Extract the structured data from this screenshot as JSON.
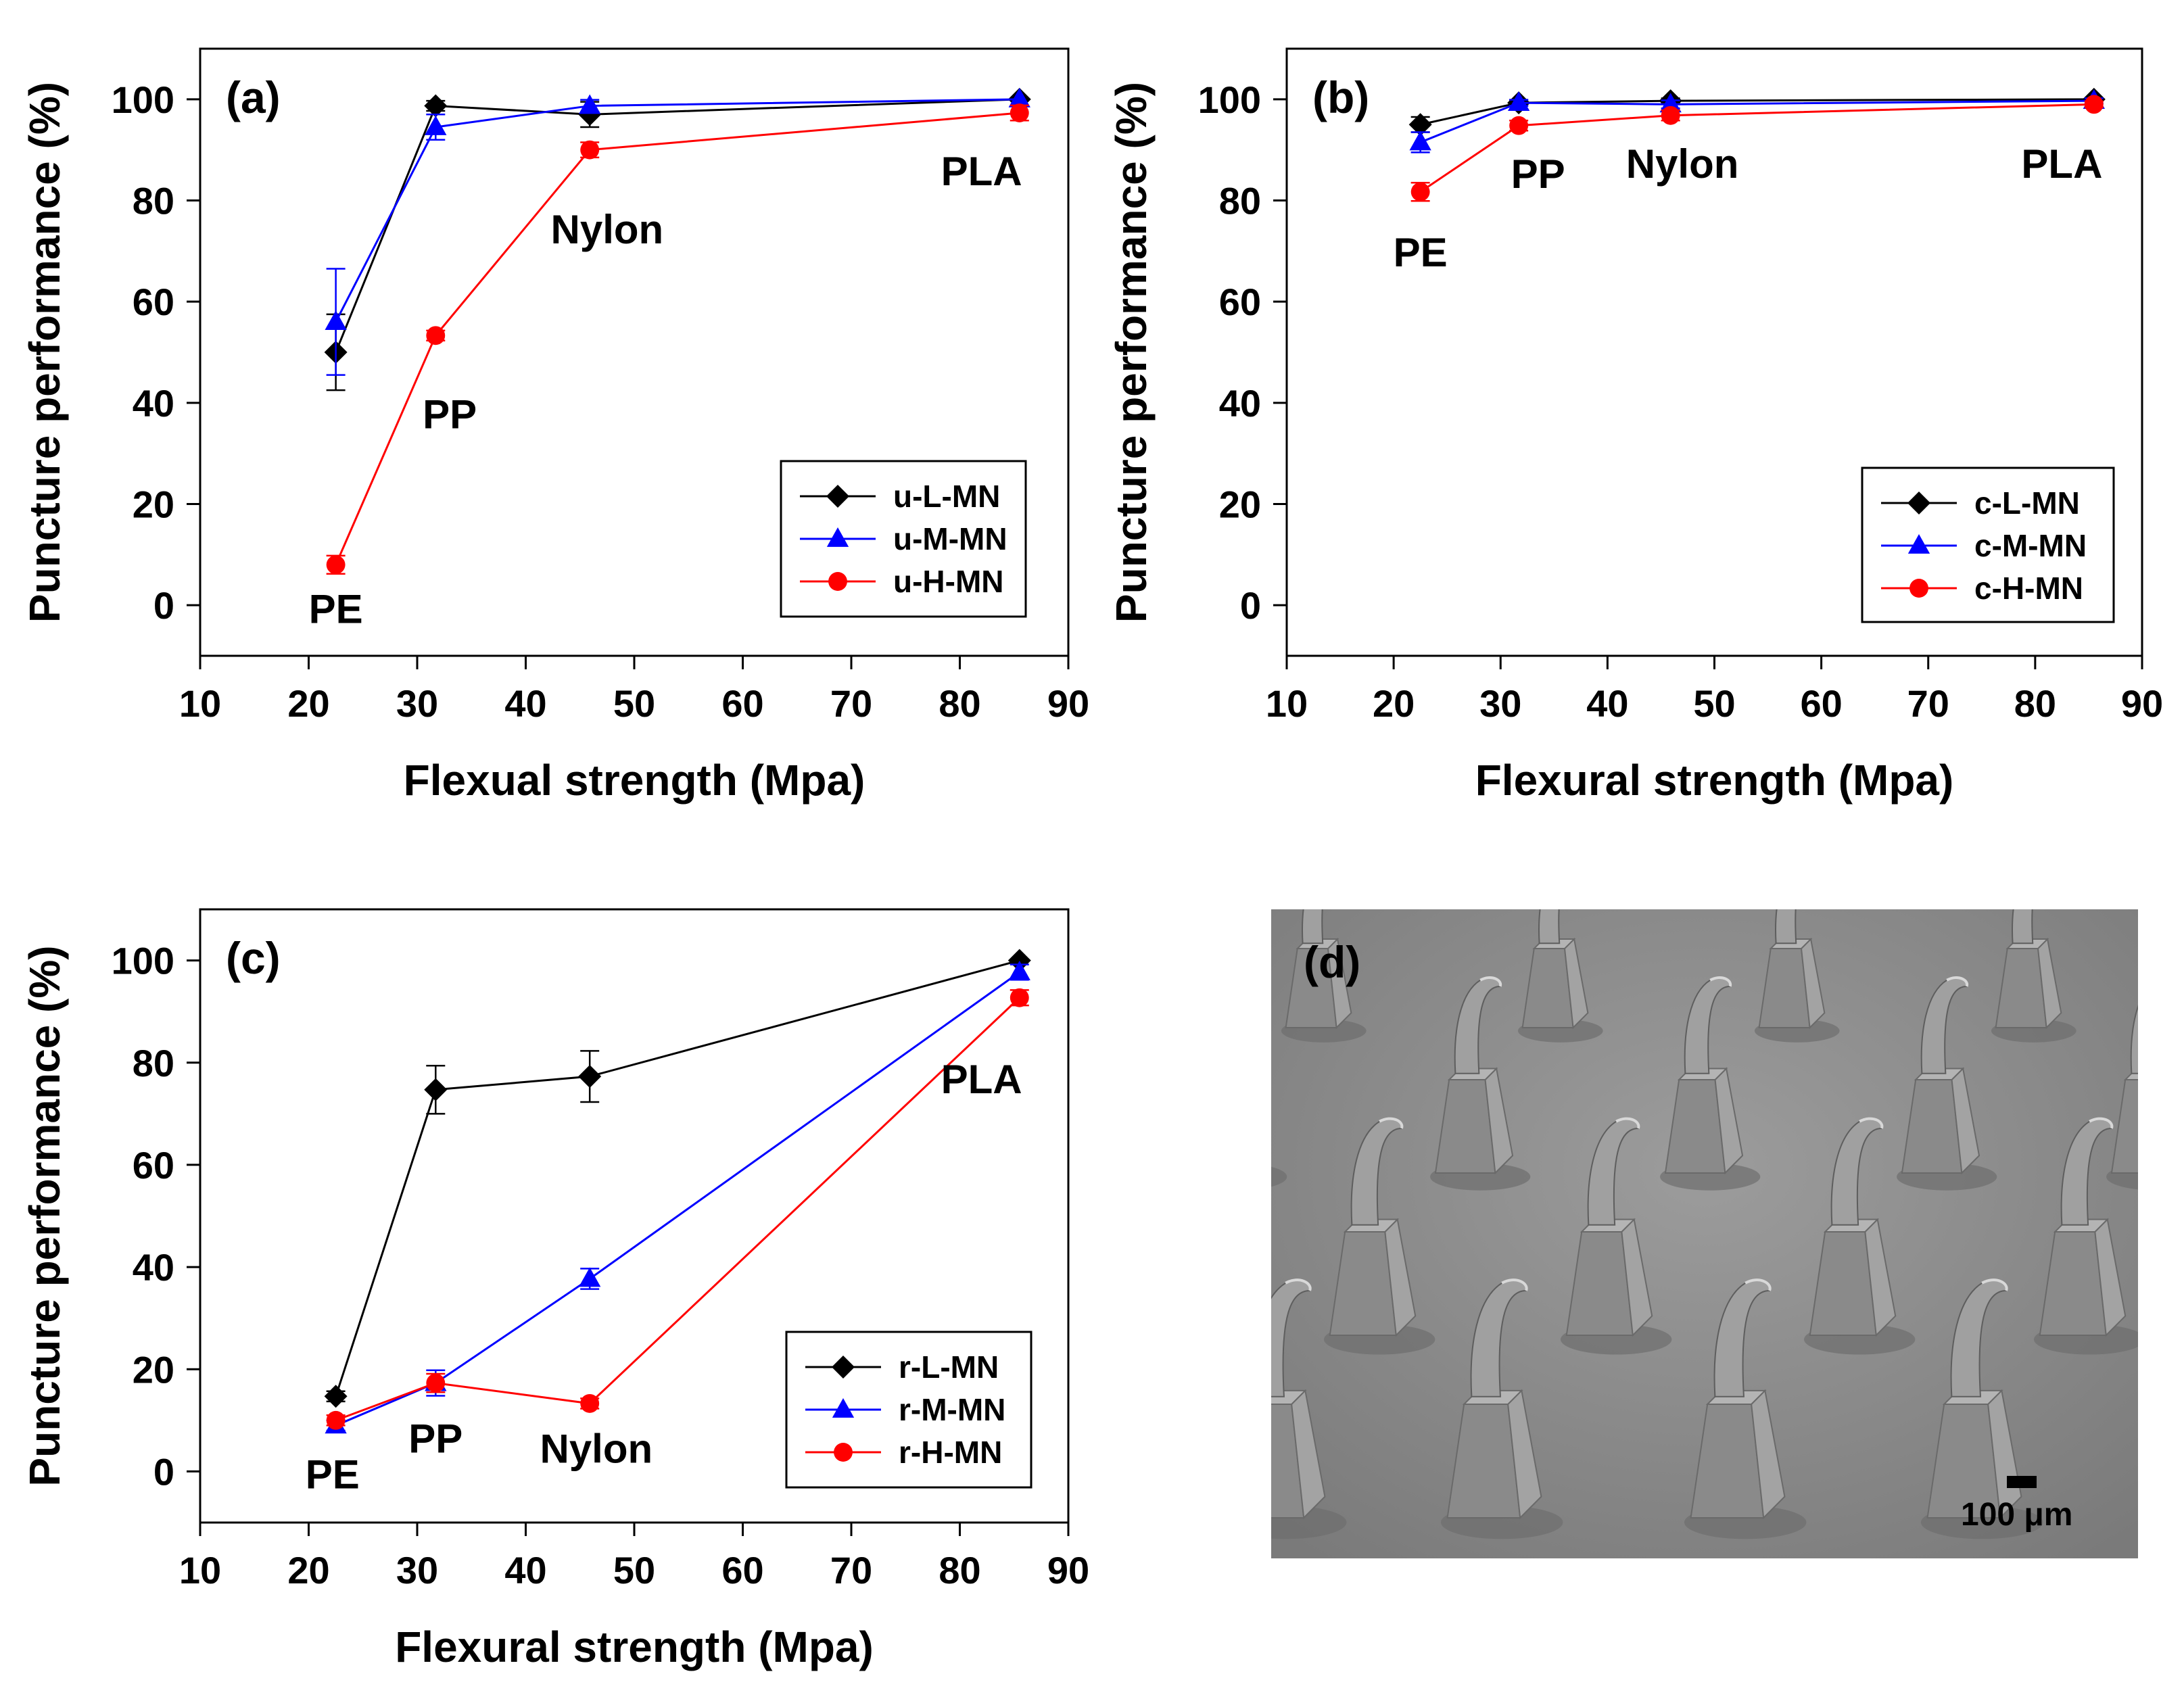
{
  "chart_data": [
    {
      "id": "a",
      "type": "line",
      "panel_label": "(a)",
      "xlabel": "Flexual strength (Mpa)",
      "ylabel": "Puncture performance (%)",
      "xlim": [
        10,
        90
      ],
      "ylim": [
        -10,
        110
      ],
      "xticks": [
        10,
        20,
        30,
        40,
        50,
        60,
        70,
        80,
        90
      ],
      "yticks": [
        0,
        20,
        40,
        60,
        80,
        100
      ],
      "legend_position": "bottom-right",
      "series": [
        {
          "name": "u-L-MN",
          "color": "#000000",
          "marker": "diamond",
          "x": [
            22.5,
            31.7,
            45.9,
            85.5
          ],
          "values": [
            50,
            98.7,
            97,
            100
          ],
          "errors": [
            7.5,
            1,
            2.5,
            0
          ]
        },
        {
          "name": "u-M-MN",
          "color": "#0000ff",
          "marker": "triangle",
          "x": [
            22.5,
            31.7,
            45.9,
            85.5
          ],
          "values": [
            56,
            94.5,
            98.7,
            100
          ],
          "errors": [
            10.5,
            2.5,
            1.2,
            0
          ]
        },
        {
          "name": "u-H-MN",
          "color": "#ff0000",
          "marker": "circle",
          "x": [
            22.5,
            31.7,
            45.9,
            85.5
          ],
          "values": [
            8,
            53.3,
            90,
            97.3
          ],
          "errors": [
            1.8,
            1,
            1.5,
            1.5
          ]
        }
      ],
      "annotations": [
        {
          "text": "PE",
          "x": 22.5,
          "y": -3.5
        },
        {
          "text": "PP",
          "x": 33,
          "y": 35
        },
        {
          "text": "Nylon",
          "x": 47.5,
          "y": 71.5
        },
        {
          "text": "PLA",
          "x": 82,
          "y": 83
        }
      ]
    },
    {
      "id": "b",
      "type": "line",
      "panel_label": "(b)",
      "xlabel": "Flexural strength (Mpa)",
      "ylabel": "Puncture performance (%)",
      "xlim": [
        10,
        90
      ],
      "ylim": [
        -10,
        110
      ],
      "xticks": [
        10,
        20,
        30,
        40,
        50,
        60,
        70,
        80,
        90
      ],
      "yticks": [
        0,
        20,
        40,
        60,
        80,
        100
      ],
      "legend_position": "bottom-right",
      "series": [
        {
          "name": "c-L-MN",
          "color": "#000000",
          "marker": "diamond",
          "x": [
            22.5,
            31.7,
            45.9,
            85.5
          ],
          "values": [
            95,
            99.3,
            99.7,
            100
          ],
          "errors": [
            1.5,
            0.6,
            0.5,
            0
          ]
        },
        {
          "name": "c-M-MN",
          "color": "#0000ff",
          "marker": "triangle",
          "x": [
            22.5,
            31.7,
            45.9,
            85.5
          ],
          "values": [
            91.5,
            99.3,
            99,
            99.7
          ],
          "errors": [
            2,
            0.6,
            0.8,
            0.5
          ]
        },
        {
          "name": "c-H-MN",
          "color": "#ff0000",
          "marker": "circle",
          "x": [
            22.5,
            31.7,
            45.9,
            85.5
          ],
          "values": [
            81.7,
            94.8,
            96.8,
            99
          ],
          "errors": [
            1.8,
            1,
            1,
            0.6
          ]
        }
      ],
      "annotations": [
        {
          "text": "PE",
          "x": 22.5,
          "y": 67
        },
        {
          "text": "PP",
          "x": 33.5,
          "y": 82.5
        },
        {
          "text": "Nylon",
          "x": 47,
          "y": 84.5
        },
        {
          "text": "PLA",
          "x": 82.5,
          "y": 84.5
        }
      ]
    },
    {
      "id": "c",
      "type": "line",
      "panel_label": "(c)",
      "xlabel": "Flexural strength (Mpa)",
      "ylabel": "Puncture performance (%)",
      "xlim": [
        10,
        90
      ],
      "ylim": [
        -10,
        110
      ],
      "xticks": [
        10,
        20,
        30,
        40,
        50,
        60,
        70,
        80,
        90
      ],
      "yticks": [
        0,
        20,
        40,
        60,
        80,
        100
      ],
      "legend_position": "bottom-right",
      "series": [
        {
          "name": "r-L-MN",
          "color": "#000000",
          "marker": "diamond",
          "x": [
            22.5,
            31.7,
            45.9,
            85.5
          ],
          "values": [
            14.7,
            74.7,
            77.3,
            100
          ],
          "errors": [
            1,
            4.7,
            5,
            0
          ]
        },
        {
          "name": "r-M-MN",
          "color": "#0000ff",
          "marker": "triangle",
          "x": [
            22.5,
            31.7,
            45.9,
            85.5
          ],
          "values": [
            9,
            17.3,
            37.7,
            97.7
          ],
          "errors": [
            1,
            2.5,
            2,
            1.5
          ]
        },
        {
          "name": "r-H-MN",
          "color": "#ff0000",
          "marker": "circle",
          "x": [
            22.5,
            31.7,
            45.9,
            85.5
          ],
          "values": [
            10,
            17.3,
            13.3,
            92.7
          ],
          "errors": [
            1,
            1.8,
            1,
            1.5
          ]
        }
      ],
      "annotations": [
        {
          "text": "PE",
          "x": 22.2,
          "y": -3.3
        },
        {
          "text": "PP",
          "x": 31.7,
          "y": 3.7
        },
        {
          "text": "Nylon",
          "x": 46.5,
          "y": 1.7
        },
        {
          "text": "PLA",
          "x": 82,
          "y": 74
        }
      ]
    }
  ],
  "photo": {
    "panel_label": "(d)",
    "scale_bar_label": "100 μm"
  }
}
